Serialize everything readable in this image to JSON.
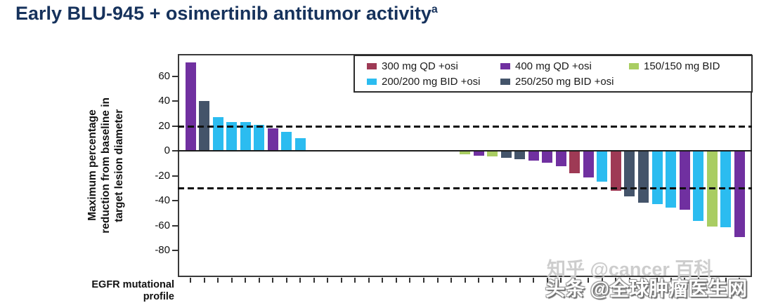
{
  "page": {
    "title_main": "Early BLU-945 + osimertinib antitumor activity",
    "title_sup": "a"
  },
  "watermarks": {
    "zhihu": "知乎 @cancer 百科",
    "toutiao": "头条 @全球肿瘤医生网"
  },
  "chart_data": {
    "type": "bar",
    "title": "Early BLU-945 + osimertinib antitumor activity",
    "subtitle": "waterfall plot, one bar per patient",
    "ylabel": "Maximum percentage\nreduction from baseline in\ntarget lesion diameter",
    "xlabel": "EGFR mutational\nprofile",
    "ylim": [
      -100,
      78
    ],
    "yticks": [
      60,
      40,
      20,
      0,
      -20,
      -40,
      -60,
      -80
    ],
    "reference_lines": [
      20,
      -30
    ],
    "grid": false,
    "legend_position": "top-right-inside",
    "slots": 41,
    "series": [
      {
        "key": "s300",
        "name": "300 mg QD +osi",
        "color": "#9E3A55"
      },
      {
        "key": "s400",
        "name": "400 mg QD +osi",
        "color": "#7030A0"
      },
      {
        "key": "s150",
        "name": "150/150 mg BID",
        "color": "#A9CD62"
      },
      {
        "key": "s200",
        "name": "200/200 mg BID +osi",
        "color": "#2BBCF0"
      },
      {
        "key": "s250",
        "name": "250/250 mg BID +osi",
        "color": "#44546A"
      }
    ],
    "bars": [
      {
        "slot": 0,
        "value": 71,
        "series": "s400"
      },
      {
        "slot": 1,
        "value": 40,
        "series": "s250"
      },
      {
        "slot": 2,
        "value": 27,
        "series": "s200"
      },
      {
        "slot": 3,
        "value": 23,
        "series": "s200"
      },
      {
        "slot": 4,
        "value": 23,
        "series": "s200"
      },
      {
        "slot": 5,
        "value": 21,
        "series": "s200"
      },
      {
        "slot": 6,
        "value": 18,
        "series": "s400"
      },
      {
        "slot": 7,
        "value": 15,
        "series": "s200"
      },
      {
        "slot": 8,
        "value": 10,
        "series": "s200"
      },
      {
        "slot": 20,
        "value": -2.5,
        "series": "s150"
      },
      {
        "slot": 21,
        "value": -3.5,
        "series": "s400"
      },
      {
        "slot": 22,
        "value": -4,
        "series": "s150"
      },
      {
        "slot": 23,
        "value": -5,
        "series": "s250"
      },
      {
        "slot": 24,
        "value": -6,
        "series": "s250"
      },
      {
        "slot": 25,
        "value": -7.5,
        "series": "s400"
      },
      {
        "slot": 26,
        "value": -9,
        "series": "s400"
      },
      {
        "slot": 27,
        "value": -12,
        "series": "s400"
      },
      {
        "slot": 28,
        "value": -17.5,
        "series": "s300"
      },
      {
        "slot": 29,
        "value": -21,
        "series": "s400"
      },
      {
        "slot": 30,
        "value": -24,
        "series": "s200"
      },
      {
        "slot": 31,
        "value": -31.5,
        "series": "s300"
      },
      {
        "slot": 32,
        "value": -36,
        "series": "s250"
      },
      {
        "slot": 33,
        "value": -41,
        "series": "s250"
      },
      {
        "slot": 34,
        "value": -42.5,
        "series": "s200"
      },
      {
        "slot": 35,
        "value": -45,
        "series": "s200"
      },
      {
        "slot": 36,
        "value": -46.5,
        "series": "s400"
      },
      {
        "slot": 37,
        "value": -56,
        "series": "s200"
      },
      {
        "slot": 38,
        "value": -60,
        "series": "s150"
      },
      {
        "slot": 39,
        "value": -61,
        "series": "s200"
      },
      {
        "slot": 40,
        "value": -69,
        "series": "s400"
      }
    ]
  }
}
